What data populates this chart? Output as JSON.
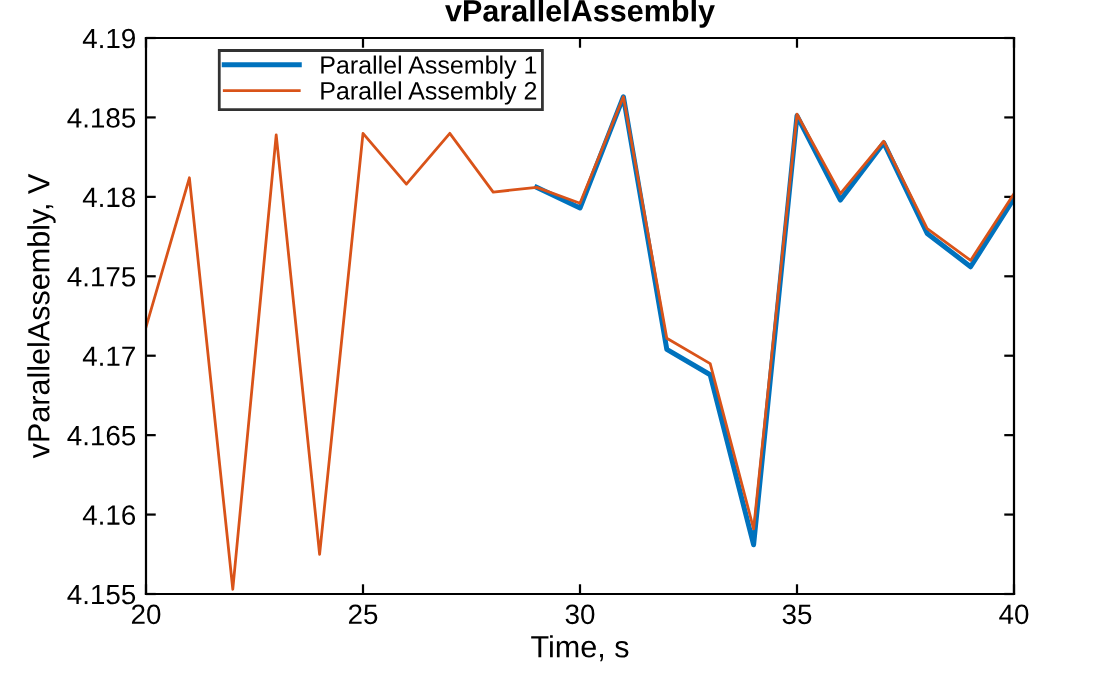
{
  "chart_data": {
    "type": "line",
    "title": "vParallelAssembly",
    "xlabel": "Time, s",
    "ylabel": "vParallelAssembly, V",
    "x": [
      20,
      21,
      22,
      23,
      24,
      25,
      26,
      27,
      28,
      29,
      30,
      31,
      32,
      33,
      34,
      35,
      36,
      37,
      38,
      39,
      40
    ],
    "series": [
      {
        "name": "Parallel Assembly 1",
        "color": "#0072bd",
        "values": [
          null,
          null,
          null,
          null,
          null,
          null,
          null,
          null,
          null,
          4.1806,
          4.1793,
          4.1863,
          4.1704,
          4.1688,
          4.1581,
          4.1851,
          4.1798,
          4.1834,
          4.1777,
          4.1756,
          4.1799
        ]
      },
      {
        "name": "Parallel Assembly 2",
        "color": "#d95319",
        "values": [
          4.1718,
          4.1812,
          4.1553,
          4.1839,
          4.1575,
          4.184,
          4.1808,
          4.184,
          4.1803,
          4.1806,
          4.1796,
          4.1863,
          4.1711,
          4.1695,
          4.1591,
          4.1852,
          4.1802,
          4.1835,
          4.178,
          4.176,
          4.1802
        ]
      }
    ],
    "xlim": [
      20,
      40
    ],
    "xticks": [
      20,
      25,
      30,
      35,
      40
    ],
    "ylim": [
      4.155,
      4.19
    ],
    "yticks": [
      4.155,
      4.16,
      4.165,
      4.17,
      4.175,
      4.18,
      4.185,
      4.19
    ],
    "grid": false,
    "legend": "top left"
  }
}
